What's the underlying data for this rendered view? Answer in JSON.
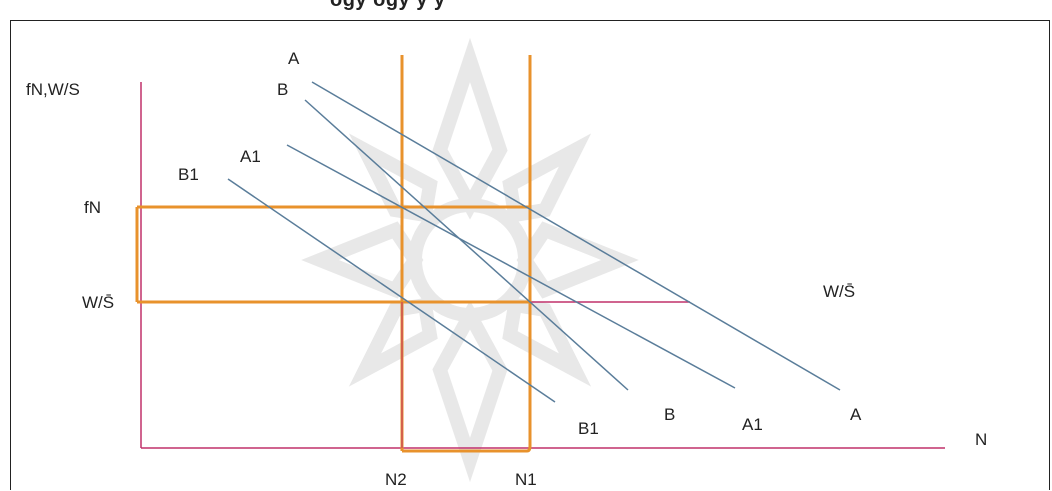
{
  "header_fragment": "ogy  ogy  y  y",
  "axes": {
    "y_label": "fN,W/S",
    "x_label": "N"
  },
  "levels": {
    "fN": "fN",
    "ws_left": "W/S̄",
    "ws_right": "W/S̄"
  },
  "quantities": {
    "n2": "N2",
    "n1": "N1"
  },
  "curves": [
    {
      "start": "A",
      "end": "A"
    },
    {
      "start": "B",
      "end": "B"
    },
    {
      "start": "A1",
      "end": "A1"
    },
    {
      "start": "B1",
      "end": "B1"
    }
  ],
  "colors": {
    "axis": "#c0306a",
    "guide": "#e8922c",
    "curve": "#5a7d9a",
    "watermark": "#e6e6e6"
  }
}
